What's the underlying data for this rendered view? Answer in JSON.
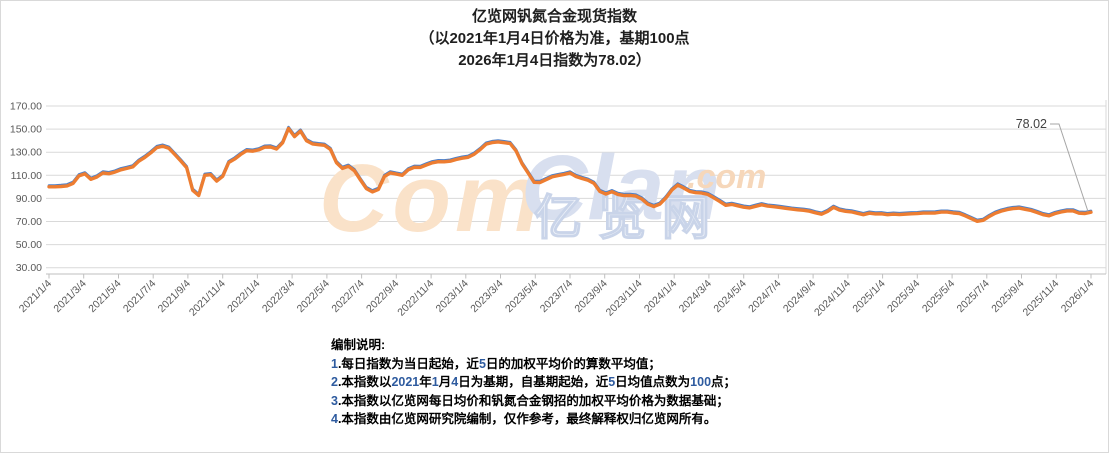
{
  "title": {
    "line1": "亿览网钒氮合金现货指数",
    "line2": "（以2021年1月4日价格为准，基期100点",
    "line3": "2026年1月4日指数为78.02）"
  },
  "watermark": {
    "part1": "Com",
    "part2": "Clan",
    "part3": ".com",
    "part4": "亿览网"
  },
  "notes": {
    "heading": "编制说明:",
    "digit_color": "#2e5b9f",
    "lines": [
      "1.每日指数为当日起始，近5日的加权平均价的算数平均值；",
      "2.本指数以2021年1月4日为基期，自基期起始，近5日均值点数为100点；",
      "3.本指数以亿览网每日均价和钒氮合金钢招的加权平均价格为数据基础；",
      "4.本指数由亿览网研究院编制，仅作参考，最终解释权归亿览网所有。"
    ]
  },
  "chart_data": {
    "type": "line",
    "title": "亿览网钒氮合金现货指数（以2021年1月4日价格为准，基期100点；2026年1月4日指数为78.02）",
    "grid": "horizontal",
    "legend": "none",
    "base_value": 100,
    "final_value": 78.02,
    "ylim": [
      30,
      170
    ],
    "y_ticks": [
      170,
      150,
      130,
      110,
      90,
      70,
      50,
      30
    ],
    "y_tick_labels": [
      "170.00",
      "150.00",
      "130.00",
      "110.00",
      "90.00",
      "70.00",
      "50.00",
      "30.00"
    ],
    "x_range": [
      "2021/1/4",
      "2026/1/4"
    ],
    "x_tick_labels": [
      "2021/1/4",
      "2021/3/4",
      "2021/5/4",
      "2021/7/4",
      "2021/9/4",
      "2021/11/4",
      "2022/1/4",
      "2022/3/4",
      "2022/5/4",
      "2022/7/4",
      "2022/9/4",
      "2022/11/4",
      "2023/1/4",
      "2023/3/4",
      "2023/5/4",
      "2023/7/4",
      "2023/9/4",
      "2023/11/4",
      "2024/1/4",
      "2024/3/4",
      "2024/5/4",
      "2024/7/4",
      "2024/9/4",
      "2024/11/4",
      "2025/1/4",
      "2025/3/4",
      "2025/5/4",
      "2025/7/4",
      "2025/9/4",
      "2025/11/4",
      "2026/1/4"
    ],
    "annotation": {
      "label": "78.02",
      "value": 78.02,
      "at": "2026/1/4"
    },
    "series": [
      {
        "name": "main",
        "color": "#ed7d31",
        "values": [
          100.0,
          100.0,
          100.3,
          100.8,
          103.0,
          109.5,
          111.2,
          106.5,
          108.5,
          112.0,
          111.4,
          112.8,
          114.8,
          116.0,
          117.3,
          122.2,
          125.5,
          129.5,
          134.0,
          135.2,
          133.5,
          128.0,
          122.5,
          116.5,
          97.0,
          92.5,
          110.0,
          110.5,
          105.0,
          109.1,
          121.0,
          124.0,
          128.0,
          131.3,
          130.9,
          132.0,
          134.3,
          134.5,
          132.8,
          138.1,
          150.5,
          143.5,
          148.3,
          140.0,
          137.2,
          136.5,
          136.0,
          132.3,
          121.0,
          116.0,
          117.8,
          114.0,
          106.0,
          98.5,
          95.6,
          97.8,
          109.0,
          112.1,
          111.0,
          110.0,
          114.8,
          116.9,
          116.8,
          118.9,
          120.8,
          121.8,
          121.7,
          122.2,
          123.7,
          124.8,
          125.6,
          128.3,
          132.3,
          137.0,
          138.3,
          138.9,
          138.2,
          137.5,
          131.0,
          120.0,
          112.0,
          103.9,
          103.8,
          106.2,
          108.6,
          109.7,
          110.7,
          112.0,
          109.0,
          107.2,
          105.7,
          103.0,
          96.0,
          93.7,
          95.8,
          93.5,
          92.4,
          92.6,
          92.0,
          89.4,
          85.0,
          83.0,
          85.0,
          90.3,
          97.2,
          101.6,
          98.9,
          96.0,
          94.9,
          94.6,
          93.5,
          90.5,
          87.4,
          84.0,
          84.8,
          83.6,
          82.4,
          81.8,
          83.2,
          84.5,
          83.3,
          82.8,
          82.2,
          81.4,
          80.7,
          80.1,
          79.7,
          78.9,
          77.5,
          76.3,
          78.7,
          82.3,
          79.9,
          78.8,
          78.3,
          77.1,
          75.9,
          77.2,
          76.6,
          76.7,
          75.9,
          76.3,
          76.0,
          76.3,
          76.7,
          76.8,
          77.3,
          77.3,
          77.4,
          78.1,
          78.1,
          77.4,
          76.9,
          74.9,
          72.5,
          70.2,
          71.0,
          74.3,
          77.1,
          79.0,
          80.3,
          81.2,
          81.6,
          80.6,
          79.5,
          77.8,
          75.9,
          74.9,
          76.9,
          78.2,
          79.2,
          79.2,
          77.2,
          76.9,
          78.02
        ]
      },
      {
        "name": "overlay",
        "color": "#4e80c8",
        "offset_from_main": 1.2
      }
    ]
  }
}
